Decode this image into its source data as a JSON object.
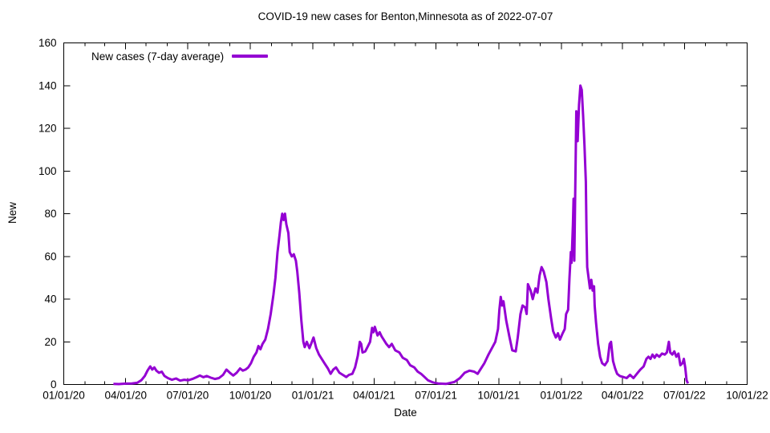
{
  "chart_data": {
    "type": "line",
    "title": "COVID-19 new cases for Benton,Minnesota as of 2022-07-07",
    "xlabel": "Date",
    "ylabel": "New",
    "x_range": [
      "2020-01-01",
      "2022-10-01"
    ],
    "ylim": [
      0,
      160
    ],
    "y_ticks": [
      0,
      20,
      40,
      60,
      80,
      100,
      120,
      140,
      160
    ],
    "x_ticks": [
      {
        "d": "2020-01-01",
        "label": "01/01/20"
      },
      {
        "d": "2020-04-01",
        "label": "04/01/20"
      },
      {
        "d": "2020-07-01",
        "label": "07/01/20"
      },
      {
        "d": "2020-10-01",
        "label": "10/01/20"
      },
      {
        "d": "2021-01-01",
        "label": "01/01/21"
      },
      {
        "d": "2021-04-01",
        "label": "04/01/21"
      },
      {
        "d": "2021-07-01",
        "label": "07/01/21"
      },
      {
        "d": "2021-10-01",
        "label": "10/01/21"
      },
      {
        "d": "2022-01-01",
        "label": "01/01/22"
      },
      {
        "d": "2022-04-01",
        "label": "04/01/22"
      },
      {
        "d": "2022-07-01",
        "label": "07/01/22"
      },
      {
        "d": "2022-10-01",
        "label": "10/01/22"
      }
    ],
    "x_minor_ticks": "monthly",
    "grid": false,
    "legend": {
      "position": "top-left-inside",
      "label": "New cases (7-day average)"
    },
    "line_color": "#9400D3",
    "line_width": 3,
    "series": [
      {
        "name": "New cases (7-day average)",
        "points": [
          [
            "2020-03-14",
            0.3
          ],
          [
            "2020-03-22",
            0.2
          ],
          [
            "2020-04-01",
            0.4
          ],
          [
            "2020-04-10",
            0.5
          ],
          [
            "2020-04-18",
            0.8
          ],
          [
            "2020-04-24",
            2
          ],
          [
            "2020-04-29",
            4
          ],
          [
            "2020-05-03",
            6.5
          ],
          [
            "2020-05-07",
            8.5
          ],
          [
            "2020-05-10",
            7
          ],
          [
            "2020-05-13",
            8
          ],
          [
            "2020-05-16",
            6.5
          ],
          [
            "2020-05-20",
            5.5
          ],
          [
            "2020-05-24",
            6
          ],
          [
            "2020-05-28",
            4
          ],
          [
            "2020-06-02",
            3
          ],
          [
            "2020-06-08",
            2.2
          ],
          [
            "2020-06-14",
            2.8
          ],
          [
            "2020-06-20",
            1.8
          ],
          [
            "2020-06-26",
            2.2
          ],
          [
            "2020-07-02",
            2
          ],
          [
            "2020-07-08",
            2.6
          ],
          [
            "2020-07-14",
            3.4
          ],
          [
            "2020-07-19",
            4.2
          ],
          [
            "2020-07-24",
            3.4
          ],
          [
            "2020-07-29",
            4
          ],
          [
            "2020-08-04",
            3.2
          ],
          [
            "2020-08-10",
            2.6
          ],
          [
            "2020-08-16",
            3
          ],
          [
            "2020-08-22",
            4.5
          ],
          [
            "2020-08-27",
            7
          ],
          [
            "2020-09-01",
            5.5
          ],
          [
            "2020-09-06",
            4.2
          ],
          [
            "2020-09-11",
            5.5
          ],
          [
            "2020-09-16",
            7.5
          ],
          [
            "2020-09-20",
            6.5
          ],
          [
            "2020-09-24",
            7
          ],
          [
            "2020-09-28",
            8
          ],
          [
            "2020-10-02",
            10
          ],
          [
            "2020-10-06",
            13
          ],
          [
            "2020-10-10",
            15
          ],
          [
            "2020-10-13",
            18
          ],
          [
            "2020-10-16",
            16.5
          ],
          [
            "2020-10-19",
            19
          ],
          [
            "2020-10-23",
            21
          ],
          [
            "2020-10-27",
            26
          ],
          [
            "2020-10-31",
            33
          ],
          [
            "2020-11-04",
            42
          ],
          [
            "2020-11-07",
            50
          ],
          [
            "2020-11-10",
            62
          ],
          [
            "2020-11-13",
            70
          ],
          [
            "2020-11-15",
            76
          ],
          [
            "2020-11-17",
            80
          ],
          [
            "2020-11-19",
            77
          ],
          [
            "2020-11-21",
            80
          ],
          [
            "2020-11-23",
            75
          ],
          [
            "2020-11-26",
            71
          ],
          [
            "2020-11-28",
            62
          ],
          [
            "2020-12-01",
            60
          ],
          [
            "2020-12-04",
            61
          ],
          [
            "2020-12-07",
            58
          ],
          [
            "2020-12-09",
            53
          ],
          [
            "2020-12-12",
            43
          ],
          [
            "2020-12-15",
            30
          ],
          [
            "2020-12-18",
            20
          ],
          [
            "2020-12-20",
            17.5
          ],
          [
            "2020-12-23",
            20
          ],
          [
            "2020-12-27",
            17
          ],
          [
            "2020-12-30",
            19.5
          ],
          [
            "2021-01-02",
            22
          ],
          [
            "2021-01-06",
            17
          ],
          [
            "2021-01-10",
            14
          ],
          [
            "2021-01-14",
            12
          ],
          [
            "2021-01-18",
            10
          ],
          [
            "2021-01-23",
            7.5
          ],
          [
            "2021-01-27",
            5
          ],
          [
            "2021-01-31",
            7
          ],
          [
            "2021-02-04",
            8
          ],
          [
            "2021-02-09",
            5.5
          ],
          [
            "2021-02-14",
            4.5
          ],
          [
            "2021-02-19",
            3.5
          ],
          [
            "2021-02-23",
            4.5
          ],
          [
            "2021-02-28",
            5
          ],
          [
            "2021-03-04",
            8
          ],
          [
            "2021-03-08",
            13.5
          ],
          [
            "2021-03-11",
            20
          ],
          [
            "2021-03-13",
            19
          ],
          [
            "2021-03-15",
            15
          ],
          [
            "2021-03-19",
            15.5
          ],
          [
            "2021-03-23",
            18
          ],
          [
            "2021-03-26",
            20
          ],
          [
            "2021-03-29",
            26.5
          ],
          [
            "2021-03-31",
            24.5
          ],
          [
            "2021-04-02",
            27
          ],
          [
            "2021-04-06",
            23
          ],
          [
            "2021-04-09",
            24.5
          ],
          [
            "2021-04-12",
            22.5
          ],
          [
            "2021-04-16",
            20.5
          ],
          [
            "2021-04-19",
            19
          ],
          [
            "2021-04-23",
            17.5
          ],
          [
            "2021-04-27",
            19
          ],
          [
            "2021-05-02",
            16
          ],
          [
            "2021-05-08",
            15
          ],
          [
            "2021-05-13",
            12.5
          ],
          [
            "2021-05-19",
            11.5
          ],
          [
            "2021-05-24",
            9
          ],
          [
            "2021-05-30",
            8
          ],
          [
            "2021-06-04",
            6
          ],
          [
            "2021-06-09",
            5
          ],
          [
            "2021-06-14",
            3.5
          ],
          [
            "2021-06-19",
            2
          ],
          [
            "2021-06-26",
            1
          ],
          [
            "2021-07-04",
            0.5
          ],
          [
            "2021-07-16",
            0.3
          ],
          [
            "2021-07-28",
            1.2
          ],
          [
            "2021-08-05",
            3
          ],
          [
            "2021-08-12",
            5.5
          ],
          [
            "2021-08-19",
            6.5
          ],
          [
            "2021-08-26",
            6
          ],
          [
            "2021-08-31",
            5
          ],
          [
            "2021-09-04",
            7
          ],
          [
            "2021-09-10",
            10
          ],
          [
            "2021-09-16",
            14
          ],
          [
            "2021-09-21",
            17
          ],
          [
            "2021-09-26",
            20
          ],
          [
            "2021-09-30",
            26
          ],
          [
            "2021-10-02",
            35
          ],
          [
            "2021-10-04",
            41
          ],
          [
            "2021-10-06",
            37
          ],
          [
            "2021-10-08",
            39
          ],
          [
            "2021-10-12",
            30
          ],
          [
            "2021-10-17",
            22
          ],
          [
            "2021-10-21",
            16
          ],
          [
            "2021-10-26",
            15.5
          ],
          [
            "2021-10-29",
            22
          ],
          [
            "2021-11-02",
            33
          ],
          [
            "2021-11-05",
            37
          ],
          [
            "2021-11-09",
            36
          ],
          [
            "2021-11-11",
            33
          ],
          [
            "2021-11-13",
            47
          ],
          [
            "2021-11-17",
            44
          ],
          [
            "2021-11-20",
            40
          ],
          [
            "2021-11-24",
            45
          ],
          [
            "2021-11-27",
            43
          ],
          [
            "2021-11-30",
            51
          ],
          [
            "2021-12-03",
            55
          ],
          [
            "2021-12-06",
            53
          ],
          [
            "2021-12-10",
            48
          ],
          [
            "2021-12-13",
            40
          ],
          [
            "2021-12-17",
            31
          ],
          [
            "2021-12-20",
            25
          ],
          [
            "2021-12-24",
            22
          ],
          [
            "2021-12-27",
            24
          ],
          [
            "2021-12-30",
            21
          ],
          [
            "2022-01-03",
            24
          ],
          [
            "2022-01-06",
            26
          ],
          [
            "2022-01-08",
            33
          ],
          [
            "2022-01-11",
            35
          ],
          [
            "2022-01-13",
            50
          ],
          [
            "2022-01-15",
            62
          ],
          [
            "2022-01-16",
            57
          ],
          [
            "2022-01-18",
            75
          ],
          [
            "2022-01-19",
            87
          ],
          [
            "2022-01-20",
            58
          ],
          [
            "2022-01-22",
            105
          ],
          [
            "2022-01-23",
            128
          ],
          [
            "2022-01-25",
            114
          ],
          [
            "2022-01-27",
            131
          ],
          [
            "2022-01-29",
            140
          ],
          [
            "2022-01-31",
            138
          ],
          [
            "2022-02-02",
            126
          ],
          [
            "2022-02-04",
            112
          ],
          [
            "2022-02-06",
            95
          ],
          [
            "2022-02-07",
            72
          ],
          [
            "2022-02-08",
            55
          ],
          [
            "2022-02-10",
            50
          ],
          [
            "2022-02-12",
            45
          ],
          [
            "2022-02-14",
            49
          ],
          [
            "2022-02-16",
            44
          ],
          [
            "2022-02-18",
            46
          ],
          [
            "2022-02-19",
            37
          ],
          [
            "2022-02-21",
            29
          ],
          [
            "2022-02-24",
            19
          ],
          [
            "2022-02-27",
            13
          ],
          [
            "2022-03-02",
            10
          ],
          [
            "2022-03-06",
            9
          ],
          [
            "2022-03-10",
            11
          ],
          [
            "2022-03-13",
            19
          ],
          [
            "2022-03-15",
            20
          ],
          [
            "2022-03-18",
            11
          ],
          [
            "2022-03-21",
            7.5
          ],
          [
            "2022-03-24",
            5
          ],
          [
            "2022-03-28",
            4
          ],
          [
            "2022-04-02",
            3.5
          ],
          [
            "2022-04-07",
            3
          ],
          [
            "2022-04-12",
            4.5
          ],
          [
            "2022-04-17",
            3
          ],
          [
            "2022-04-22",
            5
          ],
          [
            "2022-04-27",
            7
          ],
          [
            "2022-05-02",
            8.5
          ],
          [
            "2022-05-06",
            12
          ],
          [
            "2022-05-09",
            13
          ],
          [
            "2022-05-12",
            12
          ],
          [
            "2022-05-15",
            14
          ],
          [
            "2022-05-18",
            12.5
          ],
          [
            "2022-05-21",
            14
          ],
          [
            "2022-05-25",
            13
          ],
          [
            "2022-05-29",
            14.5
          ],
          [
            "2022-06-02",
            14
          ],
          [
            "2022-06-05",
            15
          ],
          [
            "2022-06-08",
            20
          ],
          [
            "2022-06-10",
            15
          ],
          [
            "2022-06-13",
            14
          ],
          [
            "2022-06-16",
            15.5
          ],
          [
            "2022-06-19",
            13
          ],
          [
            "2022-06-22",
            14.5
          ],
          [
            "2022-06-25",
            9
          ],
          [
            "2022-06-28",
            10
          ],
          [
            "2022-06-30",
            12
          ],
          [
            "2022-07-02",
            8
          ],
          [
            "2022-07-04",
            2
          ],
          [
            "2022-07-06",
            0.5
          ]
        ]
      }
    ]
  }
}
